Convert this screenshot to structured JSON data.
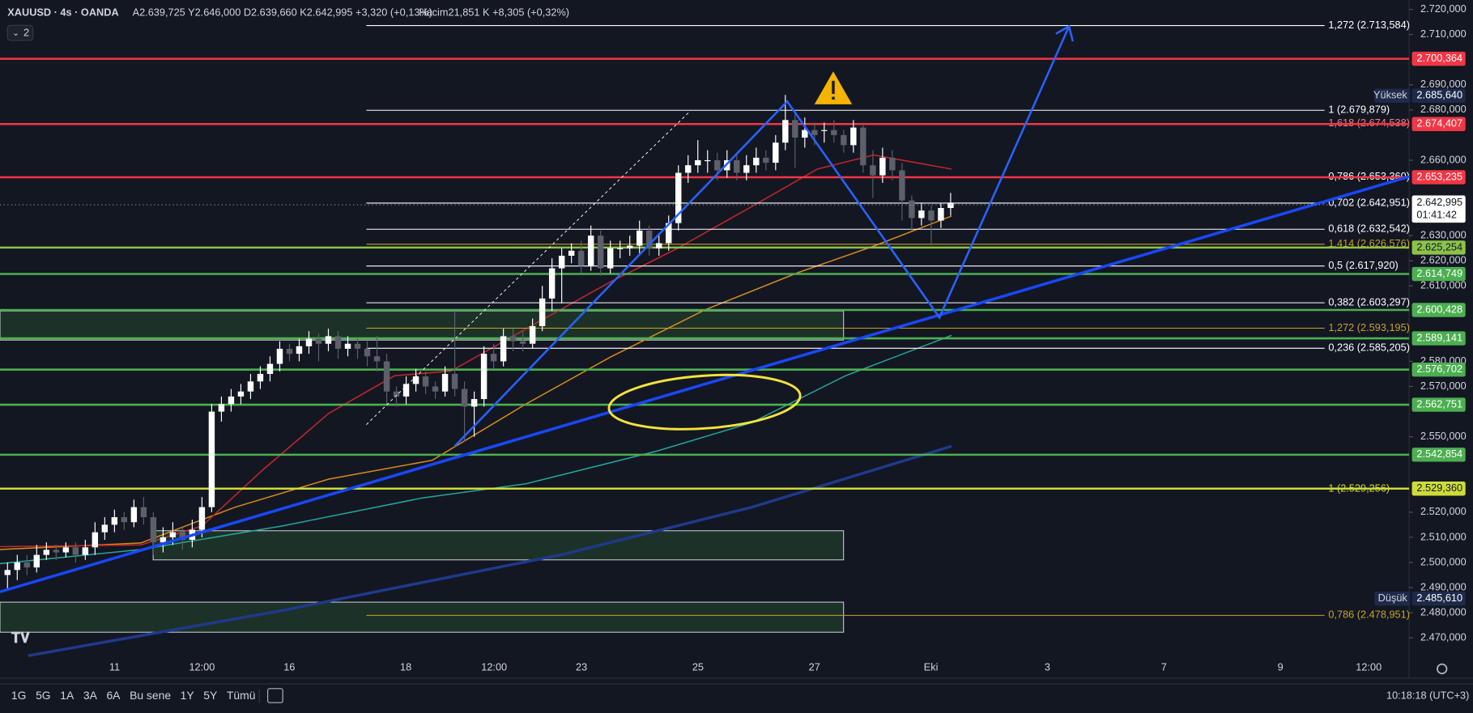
{
  "header": {
    "symbol": "XAUUSD · 4s · OANDA",
    "ohlc": "A2.639,725 Y2.646,000 D2.639,660 K2.642,995 +3,320 (+0,13%)",
    "volume": "Hacim21,851 K +8,305 (+0,32%)",
    "indicators": "2"
  },
  "chart_data": {
    "type": "candlestick",
    "up_color": "#ffffff",
    "down_color": "#5d606b",
    "ylim": [
      2.45393,
      2.72374
    ],
    "yticks": [
      {
        "value": 2.72,
        "label": "2.720,000"
      },
      {
        "value": 2.71,
        "label": "2.710,000"
      },
      {
        "value": 2.69,
        "label": "2.690,000"
      },
      {
        "value": 2.68,
        "label": "2.680,000"
      },
      {
        "value": 2.66,
        "label": "2.660,000"
      },
      {
        "value": 2.63,
        "label": "2.630,000"
      },
      {
        "value": 2.62,
        "label": "2.620,000"
      },
      {
        "value": 2.61,
        "label": "2.610,000"
      },
      {
        "value": 2.58,
        "label": "2.580,000"
      },
      {
        "value": 2.57,
        "label": "2.570,000"
      },
      {
        "value": 2.55,
        "label": "2.550,000"
      },
      {
        "value": 2.52,
        "label": "2.520,000"
      },
      {
        "value": 2.51,
        "label": "2.510,000"
      },
      {
        "value": 2.5,
        "label": "2.500,000"
      },
      {
        "value": 2.49,
        "label": "2.490,000"
      },
      {
        "value": 2.48,
        "label": "2.480,000"
      },
      {
        "value": 2.47,
        "label": "2.470,000"
      }
    ],
    "xticks": [
      "11",
      "12:00",
      "16",
      "18",
      "12:00",
      "23",
      "25",
      "27",
      "Eki",
      "3",
      "7",
      "9",
      "12:00"
    ],
    "candles": [
      [
        2.495,
        2.5,
        2.489,
        2.497
      ],
      [
        2.497,
        2.503,
        2.493,
        2.5
      ],
      [
        2.5,
        2.503,
        2.495,
        2.498
      ],
      [
        2.498,
        2.507,
        2.496,
        2.503
      ],
      [
        2.503,
        2.508,
        2.501,
        2.505
      ],
      [
        2.505,
        2.507,
        2.501,
        2.504
      ],
      [
        2.504,
        2.508,
        2.502,
        2.506
      ],
      [
        2.506,
        2.508,
        2.5,
        2.503
      ],
      [
        2.503,
        2.509,
        2.501,
        2.506
      ],
      [
        2.506,
        2.516,
        2.503,
        2.512
      ],
      [
        2.512,
        2.518,
        2.509,
        2.515
      ],
      [
        2.515,
        2.521,
        2.512,
        2.518
      ],
      [
        2.518,
        2.52,
        2.513,
        2.516
      ],
      [
        2.516,
        2.525,
        2.514,
        2.522
      ],
      [
        2.522,
        2.526,
        2.515,
        2.518
      ],
      [
        2.518,
        2.52,
        2.503,
        2.508
      ],
      [
        2.508,
        2.514,
        2.504,
        2.51
      ],
      [
        2.51,
        2.516,
        2.507,
        2.512
      ],
      [
        2.512,
        2.514,
        2.505,
        2.509
      ],
      [
        2.509,
        2.517,
        2.506,
        2.513
      ],
      [
        2.513,
        2.526,
        2.51,
        2.522
      ],
      [
        2.522,
        2.563,
        2.52,
        2.56
      ],
      [
        2.56,
        2.566,
        2.556,
        2.563
      ],
      [
        2.563,
        2.569,
        2.56,
        2.566
      ],
      [
        2.566,
        2.571,
        2.563,
        2.568
      ],
      [
        2.568,
        2.575,
        2.565,
        2.572
      ],
      [
        2.572,
        2.578,
        2.569,
        2.575
      ],
      [
        2.575,
        2.582,
        2.572,
        2.579
      ],
      [
        2.579,
        2.588,
        2.576,
        2.585
      ],
      [
        2.585,
        2.587,
        2.58,
        2.583
      ],
      [
        2.583,
        2.589,
        2.58,
        2.586
      ],
      [
        2.586,
        2.592,
        2.583,
        2.589
      ],
      [
        2.589,
        2.591,
        2.58,
        2.587
      ],
      [
        2.587,
        2.593,
        2.584,
        2.59
      ],
      [
        2.59,
        2.592,
        2.581,
        2.585
      ],
      [
        2.585,
        2.59,
        2.582,
        2.587
      ],
      [
        2.587,
        2.589,
        2.581,
        2.585
      ],
      [
        2.585,
        2.588,
        2.578,
        2.582
      ],
      [
        2.582,
        2.59,
        2.576,
        2.58
      ],
      [
        2.58,
        2.583,
        2.563,
        2.568
      ],
      [
        2.568,
        2.57,
        2.562,
        2.566
      ],
      [
        2.566,
        2.574,
        2.563,
        2.571
      ],
      [
        2.571,
        2.577,
        2.568,
        2.574
      ],
      [
        2.574,
        2.576,
        2.567,
        2.57
      ],
      [
        2.57,
        2.572,
        2.565,
        2.568
      ],
      [
        2.568,
        2.578,
        2.566,
        2.575
      ],
      [
        2.575,
        2.6,
        2.566,
        2.569
      ],
      [
        2.569,
        2.572,
        2.548,
        2.562
      ],
      [
        2.562,
        2.568,
        2.55,
        2.565
      ],
      [
        2.565,
        2.586,
        2.562,
        2.583
      ],
      [
        2.583,
        2.587,
        2.577,
        2.58
      ],
      [
        2.58,
        2.593,
        2.578,
        2.59
      ],
      [
        2.59,
        2.593,
        2.584,
        2.588
      ],
      [
        2.588,
        2.592,
        2.584,
        2.587
      ],
      [
        2.587,
        2.597,
        2.585,
        2.594
      ],
      [
        2.594,
        2.61,
        2.592,
        2.605
      ],
      [
        2.605,
        2.621,
        2.6,
        2.617
      ],
      [
        2.617,
        2.625,
        2.603,
        2.622
      ],
      [
        2.622,
        2.627,
        2.619,
        2.624
      ],
      [
        2.624,
        2.628,
        2.615,
        2.618
      ],
      [
        2.618,
        2.634,
        2.616,
        2.63
      ],
      [
        2.63,
        2.632,
        2.614,
        2.617
      ],
      [
        2.617,
        2.628,
        2.615,
        2.625
      ],
      [
        2.625,
        2.628,
        2.621,
        2.625
      ],
      [
        2.625,
        2.63,
        2.622,
        2.626
      ],
      [
        2.626,
        2.636,
        2.623,
        2.632
      ],
      [
        2.632,
        2.634,
        2.622,
        2.625
      ],
      [
        2.625,
        2.631,
        2.622,
        2.627
      ],
      [
        2.627,
        2.638,
        2.624,
        2.635
      ],
      [
        2.635,
        2.658,
        2.632,
        2.655
      ],
      [
        2.655,
        2.662,
        2.651,
        2.658
      ],
      [
        2.658,
        2.668,
        2.655,
        2.66
      ],
      [
        2.66,
        2.664,
        2.655,
        2.66
      ],
      [
        2.66,
        2.663,
        2.652,
        2.656
      ],
      [
        2.656,
        2.664,
        2.653,
        2.66
      ],
      [
        2.66,
        2.662,
        2.652,
        2.655
      ],
      [
        2.655,
        2.662,
        2.652,
        2.658
      ],
      [
        2.658,
        2.665,
        2.655,
        2.661
      ],
      [
        2.661,
        2.664,
        2.656,
        2.659
      ],
      [
        2.659,
        2.67,
        2.656,
        2.667
      ],
      [
        2.667,
        2.686,
        2.664,
        2.676
      ],
      [
        2.676,
        2.679,
        2.657,
        2.669
      ],
      [
        2.669,
        2.677,
        2.665,
        2.672
      ],
      [
        2.672,
        2.675,
        2.666,
        2.67
      ],
      [
        2.672,
        2.675,
        2.667,
        2.672
      ],
      [
        2.672,
        2.676,
        2.667,
        2.67
      ],
      [
        2.67,
        2.672,
        2.663,
        2.666
      ],
      [
        2.666,
        2.676,
        2.663,
        2.673
      ],
      [
        2.673,
        2.675,
        2.655,
        2.658
      ],
      [
        2.658,
        2.664,
        2.645,
        2.654
      ],
      [
        2.654,
        2.665,
        2.651,
        2.661
      ],
      [
        2.661,
        2.664,
        2.652,
        2.656
      ],
      [
        2.656,
        2.659,
        2.636,
        2.644
      ],
      [
        2.644,
        2.646,
        2.632,
        2.637
      ],
      [
        2.637,
        2.643,
        2.634,
        2.64
      ],
      [
        2.64,
        2.642,
        2.626,
        2.636
      ],
      [
        2.636,
        2.643,
        2.633,
        2.641
      ],
      [
        2.641,
        2.647,
        2.638,
        2.643
      ]
    ],
    "levels": [
      {
        "value": 2.700364,
        "label": "2.700,364",
        "color": "#f23645"
      },
      {
        "value": 2.674407,
        "label": "2.674,407",
        "color": "#f23645"
      },
      {
        "value": 2.653235,
        "label": "2.653,235",
        "color": "#f23645"
      },
      {
        "value": 2.625254,
        "label": "2.625,254",
        "color": "#8bc34a"
      },
      {
        "value": 2.614749,
        "label": "2.614,749",
        "color": "#4caf50"
      },
      {
        "value": 2.600428,
        "label": "2.600,428",
        "color": "#4caf50"
      },
      {
        "value": 2.589141,
        "label": "2.589,141",
        "color": "#4caf50"
      },
      {
        "value": 2.576702,
        "label": "2.576,702",
        "color": "#4caf50"
      },
      {
        "value": 2.562751,
        "label": "2.562,751",
        "color": "#4caf50"
      },
      {
        "value": 2.542854,
        "label": "2.542,854",
        "color": "#4caf50"
      },
      {
        "value": 2.52936,
        "label": "2.529,360",
        "color": "#cddc39"
      }
    ],
    "fib": [
      {
        "value": 2.713584,
        "label": "1,272 (2.713,584)",
        "color": "#ffffff"
      },
      {
        "value": 2.679879,
        "label": "1 (2.679,879)",
        "color": "#ffffff"
      },
      {
        "value": 2.674538,
        "label": "1,618 (2.674,538)",
        "color": "#f77c80"
      },
      {
        "value": 2.65336,
        "label": "0,786 (2.653,360)",
        "color": "#ffffff"
      },
      {
        "value": 2.642951,
        "label": "0,702 (2.642,951)",
        "color": "#ffffff"
      },
      {
        "value": 2.632542,
        "label": "0,618 (2.632,542)",
        "color": "#ffffff"
      },
      {
        "value": 2.626576,
        "label": "1,414 (2.626,576)",
        "color": "#c9a227"
      },
      {
        "value": 2.61792,
        "label": "0,5 (2.617,920)",
        "color": "#ffffff"
      },
      {
        "value": 2.603297,
        "label": "0,382 (2.603,297)",
        "color": "#ffffff"
      },
      {
        "value": 2.593195,
        "label": "1,272 (2.593,195)",
        "color": "#c9a227"
      },
      {
        "value": 2.585205,
        "label": "0,236 (2.585,205)",
        "color": "#ffffff"
      },
      {
        "value": 2.529256,
        "label": "1 (2.529,256)",
        "color": "#cddc39"
      },
      {
        "value": 2.478951,
        "label": "0,786 (2.478,951)",
        "color": "#c9a227"
      }
    ],
    "high": {
      "name": "Yüksek",
      "value": 2.68564,
      "label": "2.685,640"
    },
    "low": {
      "name": "Düşük",
      "value": 2.48561,
      "label": "2.485,610"
    },
    "last": {
      "value": 2.642995,
      "label": "2.642,995",
      "countdown": "01:41:42"
    }
  },
  "toolbar": {
    "periods": [
      "1G",
      "5G",
      "1A",
      "3A",
      "6A",
      "Bu sene",
      "1Y",
      "5Y",
      "Tümü"
    ],
    "clock": "10:18:18 (UTC+3)"
  }
}
